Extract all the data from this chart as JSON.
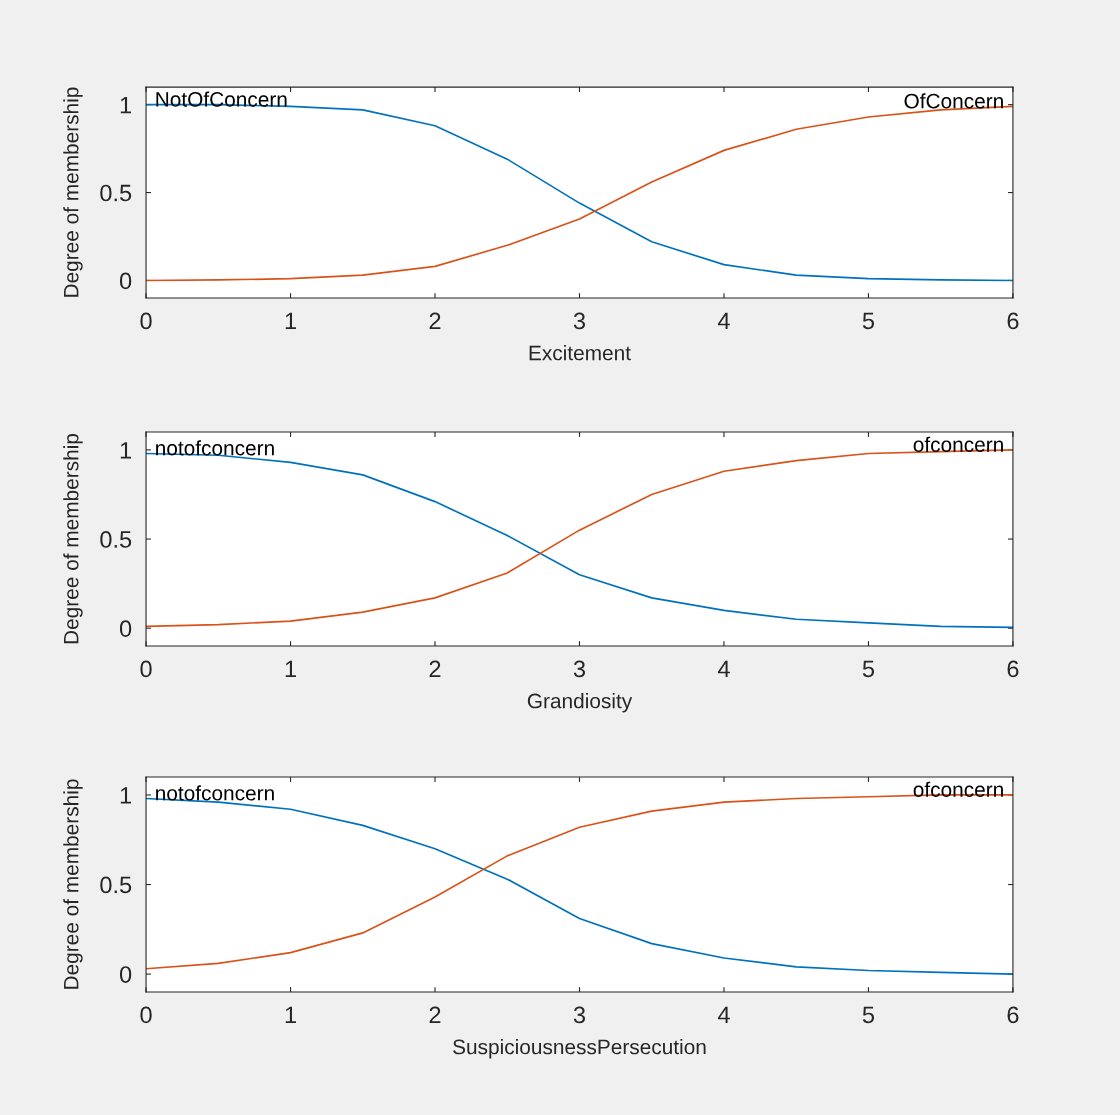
{
  "chart_data": [
    {
      "type": "line",
      "xlabel": "Excitement",
      "ylabel": "Degree of membership",
      "x": [
        0,
        0.5,
        1,
        1.5,
        2,
        2.5,
        3,
        3.5,
        4,
        4.5,
        5,
        5.5,
        6
      ],
      "xlim": [
        0,
        6
      ],
      "xticks": [
        0,
        1,
        2,
        3,
        4,
        5,
        6
      ],
      "ylim": [
        -0.1,
        1.1
      ],
      "yticks": [
        0,
        0.5,
        1
      ],
      "grid": false,
      "legend": false,
      "series": [
        {
          "name": "NotOfConcern",
          "color": "#0072bd",
          "values": [
            1.0,
            1.0,
            0.99,
            0.97,
            0.88,
            0.69,
            0.44,
            0.22,
            0.09,
            0.03,
            0.01,
            0.003,
            0.0
          ]
        },
        {
          "name": "OfConcern",
          "color": "#d95319",
          "values": [
            0.0,
            0.003,
            0.01,
            0.03,
            0.08,
            0.2,
            0.35,
            0.56,
            0.74,
            0.86,
            0.93,
            0.97,
            0.99
          ]
        }
      ]
    },
    {
      "type": "line",
      "xlabel": "Grandiosity",
      "ylabel": "Degree of membership",
      "x": [
        0,
        0.5,
        1,
        1.5,
        2,
        2.5,
        3,
        3.5,
        4,
        4.5,
        5,
        5.5,
        6
      ],
      "xlim": [
        0,
        6
      ],
      "xticks": [
        0,
        1,
        2,
        3,
        4,
        5,
        6
      ],
      "ylim": [
        -0.1,
        1.1
      ],
      "yticks": [
        0,
        0.5,
        1
      ],
      "grid": false,
      "legend": false,
      "series": [
        {
          "name": "notofconcern",
          "color": "#0072bd",
          "values": [
            0.98,
            0.97,
            0.93,
            0.86,
            0.71,
            0.52,
            0.3,
            0.17,
            0.1,
            0.05,
            0.03,
            0.01,
            0.005
          ]
        },
        {
          "name": "ofconcern",
          "color": "#d95319",
          "values": [
            0.01,
            0.02,
            0.04,
            0.09,
            0.17,
            0.31,
            0.55,
            0.75,
            0.88,
            0.94,
            0.98,
            0.99,
            1.0
          ]
        }
      ]
    },
    {
      "type": "line",
      "xlabel": "SuspiciousnessPersecution",
      "ylabel": "Degree of membership",
      "x": [
        0,
        0.5,
        1,
        1.5,
        2,
        2.5,
        3,
        3.5,
        4,
        4.5,
        5,
        5.5,
        6
      ],
      "xlim": [
        0,
        6
      ],
      "xticks": [
        0,
        1,
        2,
        3,
        4,
        5,
        6
      ],
      "ylim": [
        -0.1,
        1.1
      ],
      "yticks": [
        0,
        0.5,
        1
      ],
      "grid": false,
      "legend": false,
      "series": [
        {
          "name": "notofconcern",
          "color": "#0072bd",
          "values": [
            0.98,
            0.96,
            0.92,
            0.83,
            0.7,
            0.53,
            0.31,
            0.17,
            0.09,
            0.04,
            0.02,
            0.01,
            0.0
          ]
        },
        {
          "name": "ofconcern",
          "color": "#d95319",
          "values": [
            0.03,
            0.06,
            0.12,
            0.23,
            0.43,
            0.66,
            0.82,
            0.91,
            0.96,
            0.98,
            0.99,
            1.0,
            1.0
          ]
        }
      ]
    }
  ]
}
